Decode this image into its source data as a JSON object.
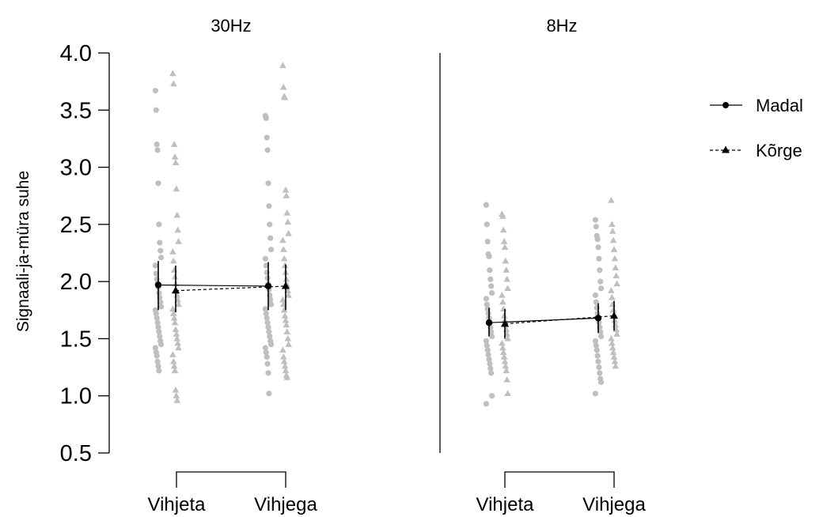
{
  "colors": {
    "axis": "#000000",
    "raw_points": "#bfbfbf",
    "mean_marker": "#000000"
  },
  "chart_data": {
    "type": "scatter",
    "ylabel": "Signaali-ja-müra suhe",
    "ylim": [
      0.5,
      4.0
    ],
    "yticks": [
      "0.5",
      "1.0",
      "1.5",
      "2.0",
      "2.5",
      "3.0",
      "3.5",
      "4.0"
    ],
    "legend": {
      "placement": "right",
      "entries": [
        {
          "label": "Madal",
          "marker": "circle",
          "line": "solid"
        },
        {
          "label": "Kõrge",
          "marker": "triangle",
          "line": "dashed"
        }
      ]
    },
    "panels": [
      {
        "title": "30Hz",
        "categories": [
          "Vihjeta",
          "Vihjega"
        ],
        "series": [
          {
            "name": "Madal",
            "mean": [
              1.97,
              1.96
            ],
            "ci_low": [
              1.75,
              1.75
            ],
            "ci_high": [
              2.18,
              2.17
            ]
          },
          {
            "name": "Kõrge",
            "mean": [
              1.92,
              1.96
            ],
            "ci_low": [
              1.73,
              1.75
            ],
            "ci_high": [
              2.14,
              2.15
            ]
          }
        ],
        "raw": {
          "Madal": [
            [
              3.67,
              3.5,
              3.2,
              3.15,
              2.86,
              2.5,
              2.34,
              2.27,
              2.21,
              2.14,
              2.07,
              2.02,
              1.98,
              1.95,
              1.9,
              1.86,
              1.82,
              1.78,
              1.75,
              1.72,
              1.68,
              1.64,
              1.6,
              1.56,
              1.52,
              1.48,
              1.45,
              1.42,
              1.38,
              1.35,
              1.3,
              1.26,
              1.22
            ],
            [
              3.45,
              3.43,
              3.26,
              3.15,
              2.86,
              2.66,
              2.5,
              2.38,
              2.28,
              2.2,
              2.14,
              2.08,
              2.03,
              1.98,
              1.93,
              1.88,
              1.84,
              1.8,
              1.76,
              1.72,
              1.68,
              1.64,
              1.6,
              1.56,
              1.52,
              1.48,
              1.45,
              1.42,
              1.38,
              1.34,
              1.28,
              1.2,
              1.02
            ]
          ],
          "Kõrge": [
            [
              3.82,
              3.73,
              3.2,
              3.09,
              3.04,
              2.81,
              2.58,
              2.45,
              2.35,
              2.26,
              2.18,
              2.1,
              2.04,
              1.98,
              1.92,
              1.88,
              1.84,
              1.8,
              1.76,
              1.72,
              1.68,
              1.64,
              1.58,
              1.54,
              1.5,
              1.46,
              1.42,
              1.36,
              1.3,
              1.26,
              1.22,
              1.05,
              1.0,
              0.96
            ],
            [
              3.89,
              3.7,
              3.62,
              3.61,
              2.8,
              2.75,
              2.6,
              2.52,
              2.42,
              2.36,
              2.28,
              2.2,
              2.14,
              2.08,
              2.02,
              1.97,
              1.92,
              1.88,
              1.84,
              1.8,
              1.75,
              1.7,
              1.66,
              1.62,
              1.56,
              1.5,
              1.45,
              1.4,
              1.34,
              1.3,
              1.26,
              1.22,
              1.18,
              1.16
            ]
          ]
        }
      },
      {
        "title": "8Hz",
        "categories": [
          "Vihjeta",
          "Vihjega"
        ],
        "series": [
          {
            "name": "Madal",
            "mean": [
              1.64,
              1.68
            ],
            "ci_low": [
              1.52,
              1.55
            ],
            "ci_high": [
              1.77,
              1.81
            ]
          },
          {
            "name": "Kõrge",
            "mean": [
              1.63,
              1.7
            ],
            "ci_low": [
              1.5,
              1.57
            ],
            "ci_high": [
              1.76,
              1.83
            ]
          }
        ],
        "raw": {
          "Madal": [
            [
              2.67,
              2.5,
              2.35,
              2.24,
              2.22,
              2.1,
              2.02,
              1.96,
              1.9,
              1.85,
              1.8,
              1.76,
              1.72,
              1.68,
              1.64,
              1.6,
              1.56,
              1.52,
              1.48,
              1.44,
              1.4,
              1.36,
              1.32,
              1.28,
              1.24,
              1.2,
              1.0,
              0.93
            ],
            [
              2.54,
              2.48,
              2.4,
              2.37,
              2.3,
              2.2,
              2.1,
              2.0,
              1.94,
              1.88,
              1.82,
              1.77,
              1.72,
              1.68,
              1.64,
              1.6,
              1.56,
              1.52,
              1.48,
              1.44,
              1.4,
              1.35,
              1.3,
              1.25,
              1.2,
              1.15,
              1.12,
              1.02
            ]
          ],
          "Kõrge": [
            [
              2.59,
              2.57,
              2.45,
              2.35,
              2.3,
              2.18,
              2.1,
              2.02,
              1.94,
              1.88,
              1.82,
              1.76,
              1.7,
              1.66,
              1.62,
              1.58,
              1.54,
              1.5,
              1.46,
              1.42,
              1.38,
              1.34,
              1.3,
              1.26,
              1.22,
              1.14,
              1.02
            ],
            [
              2.71,
              2.5,
              2.44,
              2.36,
              2.28,
              2.2,
              2.12,
              2.05,
              1.98,
              1.92,
              1.86,
              1.8,
              1.75,
              1.7,
              1.66,
              1.62,
              1.58,
              1.54,
              1.5,
              1.46,
              1.42,
              1.38,
              1.34,
              1.3,
              1.26
            ]
          ]
        }
      }
    ]
  }
}
